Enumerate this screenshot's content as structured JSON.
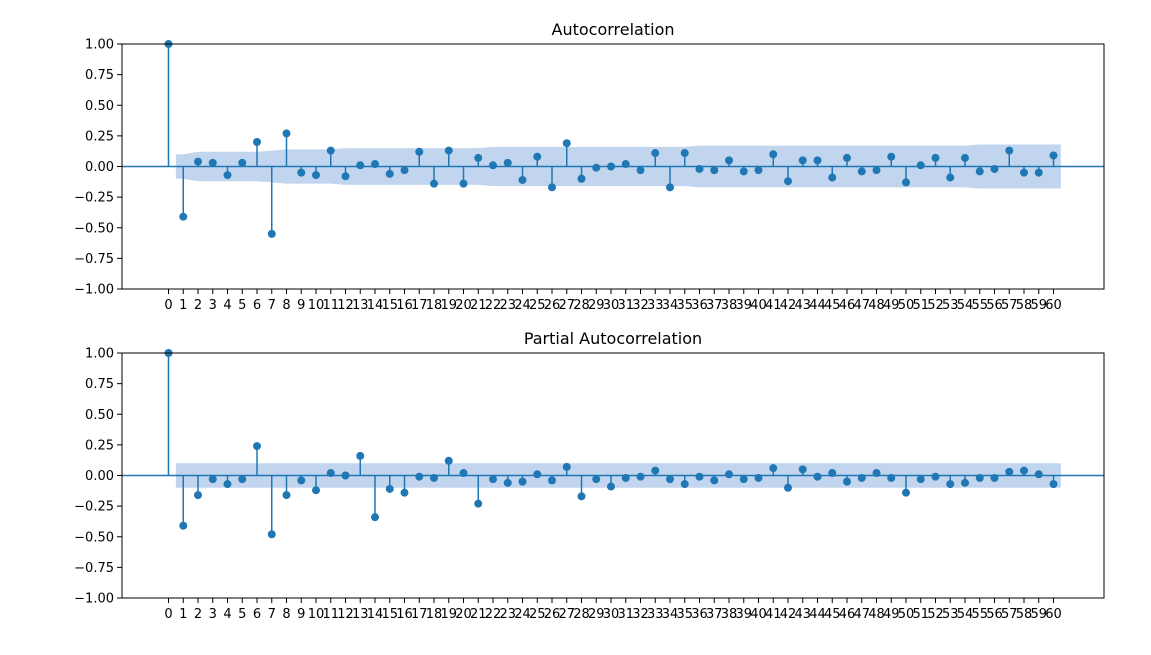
{
  "colors": {
    "accent": "#1f77b4",
    "band": "#aec7e8",
    "axis": "#000000"
  },
  "chart_data": [
    {
      "type": "stem",
      "title": "Autocorrelation",
      "xlabel": "",
      "ylabel": "",
      "ylim": [
        -1.0,
        1.0
      ],
      "yticks": [
        "1.00",
        "0.75",
        "0.50",
        "0.25",
        "0.00",
        "−0.25",
        "−0.50",
        "−0.75",
        "−1.00"
      ],
      "x": [
        0,
        1,
        2,
        3,
        4,
        5,
        6,
        7,
        8,
        9,
        10,
        11,
        12,
        13,
        14,
        15,
        16,
        17,
        18,
        19,
        20,
        21,
        22,
        23,
        24,
        25,
        26,
        27,
        28,
        29,
        30,
        31,
        32,
        33,
        34,
        35,
        36,
        37,
        38,
        39,
        40,
        41,
        42,
        43,
        44,
        45,
        46,
        47,
        48,
        49,
        50,
        51,
        52,
        53,
        54,
        55,
        56,
        57,
        58,
        59,
        60
      ],
      "values": [
        1.0,
        -0.41,
        0.04,
        0.03,
        -0.07,
        0.03,
        0.2,
        -0.55,
        0.27,
        -0.05,
        -0.07,
        0.13,
        -0.08,
        0.01,
        0.02,
        -0.06,
        -0.03,
        0.12,
        -0.14,
        0.13,
        -0.14,
        0.07,
        0.01,
        0.03,
        -0.11,
        0.08,
        -0.17,
        0.19,
        -0.1,
        -0.01,
        0.0,
        0.02,
        -0.03,
        0.11,
        -0.17,
        0.11,
        -0.02,
        -0.03,
        0.05,
        -0.04,
        -0.03,
        0.1,
        -0.12,
        0.05,
        0.05,
        -0.09,
        0.07,
        -0.04,
        -0.03,
        0.08,
        -0.13,
        0.01,
        0.07,
        -0.09,
        0.07,
        -0.04,
        -0.02,
        0.13,
        -0.05,
        -0.05,
        0.09
      ],
      "confint_x": [
        1,
        2,
        3,
        4,
        5,
        6,
        7,
        8,
        9,
        10,
        11,
        12,
        13,
        14,
        15,
        16,
        17,
        18,
        19,
        20,
        21,
        22,
        23,
        24,
        25,
        26,
        27,
        28,
        29,
        30,
        31,
        32,
        33,
        34,
        35,
        36,
        37,
        38,
        39,
        40,
        41,
        42,
        43,
        44,
        45,
        46,
        47,
        48,
        49,
        50,
        51,
        52,
        53,
        54,
        55,
        56,
        57,
        58,
        59,
        60
      ],
      "confint": [
        0.1,
        0.12,
        0.12,
        0.12,
        0.12,
        0.12,
        0.13,
        0.14,
        0.14,
        0.14,
        0.14,
        0.15,
        0.15,
        0.15,
        0.15,
        0.15,
        0.15,
        0.15,
        0.15,
        0.15,
        0.15,
        0.16,
        0.16,
        0.16,
        0.16,
        0.16,
        0.16,
        0.16,
        0.16,
        0.16,
        0.16,
        0.16,
        0.16,
        0.16,
        0.16,
        0.17,
        0.17,
        0.17,
        0.17,
        0.17,
        0.17,
        0.17,
        0.17,
        0.17,
        0.17,
        0.17,
        0.17,
        0.17,
        0.17,
        0.17,
        0.17,
        0.17,
        0.17,
        0.17,
        0.18,
        0.18,
        0.18,
        0.18,
        0.18,
        0.18
      ]
    },
    {
      "type": "stem",
      "title": "Partial Autocorrelation",
      "xlabel": "",
      "ylabel": "",
      "ylim": [
        -1.0,
        1.0
      ],
      "yticks": [
        "1.00",
        "0.75",
        "0.50",
        "0.25",
        "0.00",
        "−0.25",
        "−0.50",
        "−0.75",
        "−1.00"
      ],
      "x": [
        0,
        1,
        2,
        3,
        4,
        5,
        6,
        7,
        8,
        9,
        10,
        11,
        12,
        13,
        14,
        15,
        16,
        17,
        18,
        19,
        20,
        21,
        22,
        23,
        24,
        25,
        26,
        27,
        28,
        29,
        30,
        31,
        32,
        33,
        34,
        35,
        36,
        37,
        38,
        39,
        40,
        41,
        42,
        43,
        44,
        45,
        46,
        47,
        48,
        49,
        50,
        51,
        52,
        53,
        54,
        55,
        56,
        57,
        58,
        59,
        60
      ],
      "values": [
        1.0,
        -0.41,
        -0.16,
        -0.03,
        -0.07,
        -0.03,
        0.24,
        -0.48,
        -0.16,
        -0.04,
        -0.12,
        0.02,
        0.0,
        0.16,
        -0.34,
        -0.11,
        -0.14,
        -0.01,
        -0.02,
        0.12,
        0.02,
        -0.23,
        -0.03,
        -0.06,
        -0.05,
        0.01,
        -0.04,
        0.07,
        -0.17,
        -0.03,
        -0.09,
        -0.02,
        -0.01,
        0.04,
        -0.03,
        -0.07,
        -0.01,
        -0.04,
        0.01,
        -0.03,
        -0.02,
        0.06,
        -0.1,
        0.05,
        -0.01,
        0.02,
        -0.05,
        -0.02,
        0.02,
        -0.02,
        -0.14,
        -0.03,
        -0.01,
        -0.07,
        -0.06,
        -0.02,
        -0.02,
        0.03,
        0.04,
        0.01,
        -0.07
      ],
      "confint_x": [
        1,
        60
      ],
      "confint": [
        0.1,
        0.1
      ]
    }
  ]
}
